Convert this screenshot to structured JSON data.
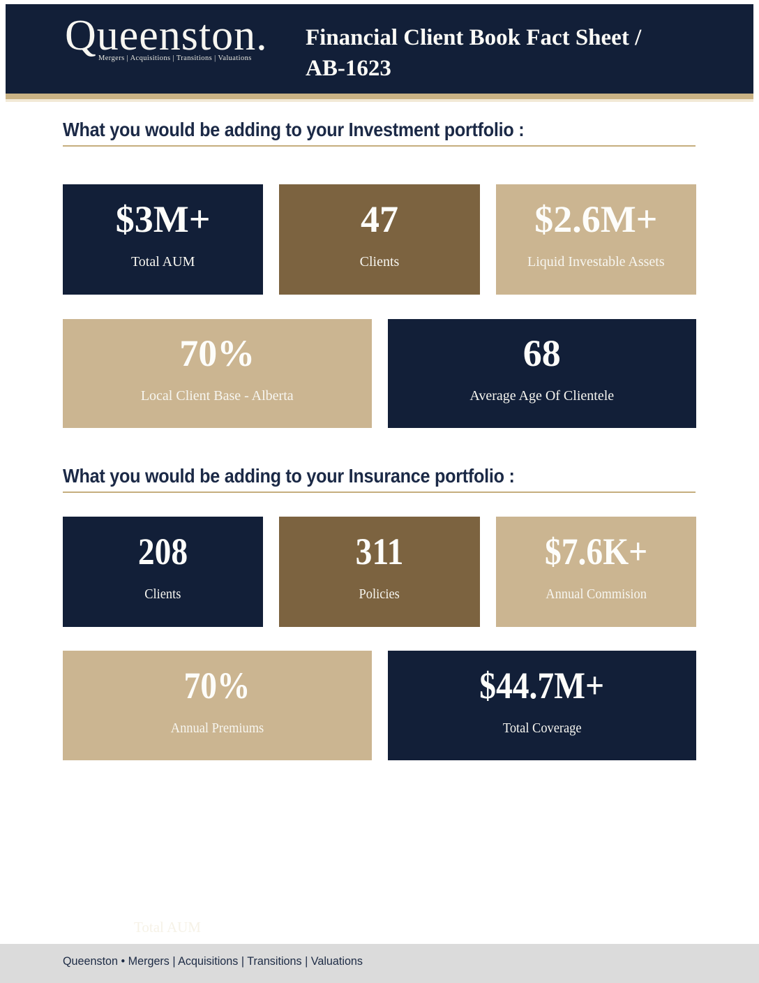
{
  "header": {
    "logo_text": "Queenston.",
    "logo_tagline": "Mergers | Acquisitions | Transitions | Valuations",
    "title_line1": "Financial Client Book Fact Sheet /",
    "title_line2": "AB-1623"
  },
  "colors": {
    "navy": "#121F38",
    "brown": "#7C6340",
    "tan": "#CBB591",
    "stripe_gold": "#C9B285",
    "underline_gold": "#C5AE7E",
    "footer_gray": "#DBDBDB",
    "heading_text": "#1B2946"
  },
  "sections": [
    {
      "heading": "What you would be adding to your Investment portfolio :",
      "rows": [
        {
          "cards": [
            {
              "value": "$3M+",
              "label": "Total AUM",
              "color": "navy"
            },
            {
              "value": "47",
              "label": "Clients",
              "color": "brown"
            },
            {
              "value": "$2.6M+",
              "label": "Liquid Investable Assets",
              "color": "tan"
            }
          ]
        },
        {
          "cards": [
            {
              "value": "70%",
              "label": "Local Client Base - Alberta",
              "color": "tan"
            },
            {
              "value": "68",
              "label": "Average Age Of Clientele",
              "color": "navy"
            }
          ]
        }
      ]
    },
    {
      "heading": "What you would be adding to your Insurance portfolio :",
      "rows": [
        {
          "cards": [
            {
              "value": "208",
              "label": "Clients",
              "color": "navy"
            },
            {
              "value": "311",
              "label": "Policies",
              "color": "brown"
            },
            {
              "value": "$7.6K+",
              "label": "Annual Commision",
              "color": "tan"
            }
          ]
        },
        {
          "cards": [
            {
              "value": "70%",
              "label": "Annual Premiums",
              "color": "tan"
            },
            {
              "value": "$44.7M+",
              "label": "Total Coverage",
              "color": "navy"
            }
          ]
        }
      ]
    }
  ],
  "ghost_text": "Total AUM",
  "footer": {
    "text": "Queenston • Mergers | Acquisitions | Transitions | Valuations"
  }
}
